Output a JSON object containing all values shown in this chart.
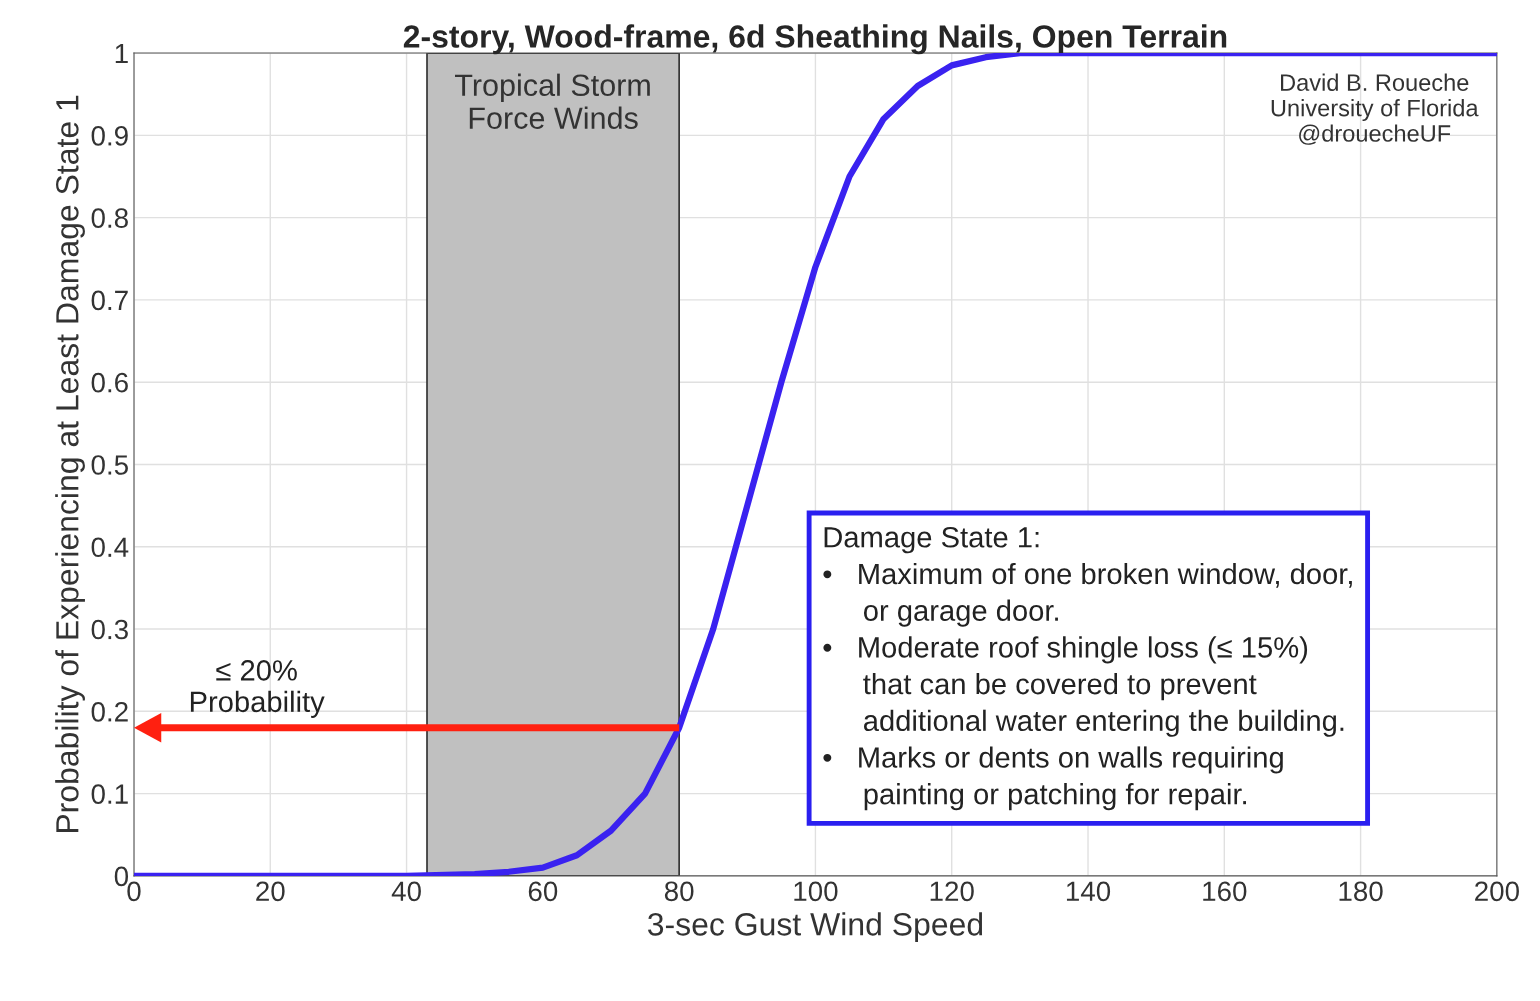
{
  "chart_data": {
    "type": "line",
    "title": "2-story, Wood-frame, 6d Sheathing Nails, Open Terrain",
    "xlabel": "3-sec Gust Wind Speed",
    "ylabel": "Probability of Experiencing at Least Damage State 1",
    "series": [
      {
        "color": "#3a22f0",
        "x": [
          0,
          40,
          50,
          55,
          60,
          65,
          70,
          75,
          80,
          85,
          90,
          95,
          100,
          105,
          110,
          115,
          120,
          125,
          130,
          140,
          200
        ],
        "values": [
          0,
          0,
          0.002,
          0.005,
          0.01,
          0.025,
          0.055,
          0.1,
          0.18,
          0.3,
          0.45,
          0.6,
          0.74,
          0.85,
          0.92,
          0.96,
          0.985,
          0.995,
          1,
          1,
          1
        ]
      }
    ],
    "xlim": [
      0,
      200
    ],
    "xticks": [
      0,
      20,
      40,
      60,
      80,
      100,
      120,
      140,
      160,
      180,
      200
    ],
    "ylim": [
      0,
      1
    ],
    "yticks": [
      0,
      0.1,
      0.2,
      0.3,
      0.4,
      0.5,
      0.6,
      0.7,
      0.8,
      0.9,
      1
    ],
    "bands": [
      {
        "axis": "x",
        "from": 43,
        "to": 80,
        "label": "Tropical Storm\nForce Winds",
        "color": "#c0c0c0"
      }
    ],
    "ref_lines": [
      {
        "axis": "y",
        "value": 0.18,
        "label": "≤ 20%\nProbability",
        "color": "#ff2010"
      }
    ],
    "annotations": [
      "David B. Roueche\nUniversity of Florida\n@drouecheUF",
      "Damage State 1:\n•   Maximum of one broken window, door,\n     or garage door.\n•   Moderate roof shingle loss (≤ 15%)\n     that can be covered to prevent\n     additional water entering the building.\n•   Marks or dents on walls requiring\n     painting or patching for repair."
    ],
    "grid": true,
    "legend": false,
    "marker": "none",
    "line_style": "solid"
  }
}
